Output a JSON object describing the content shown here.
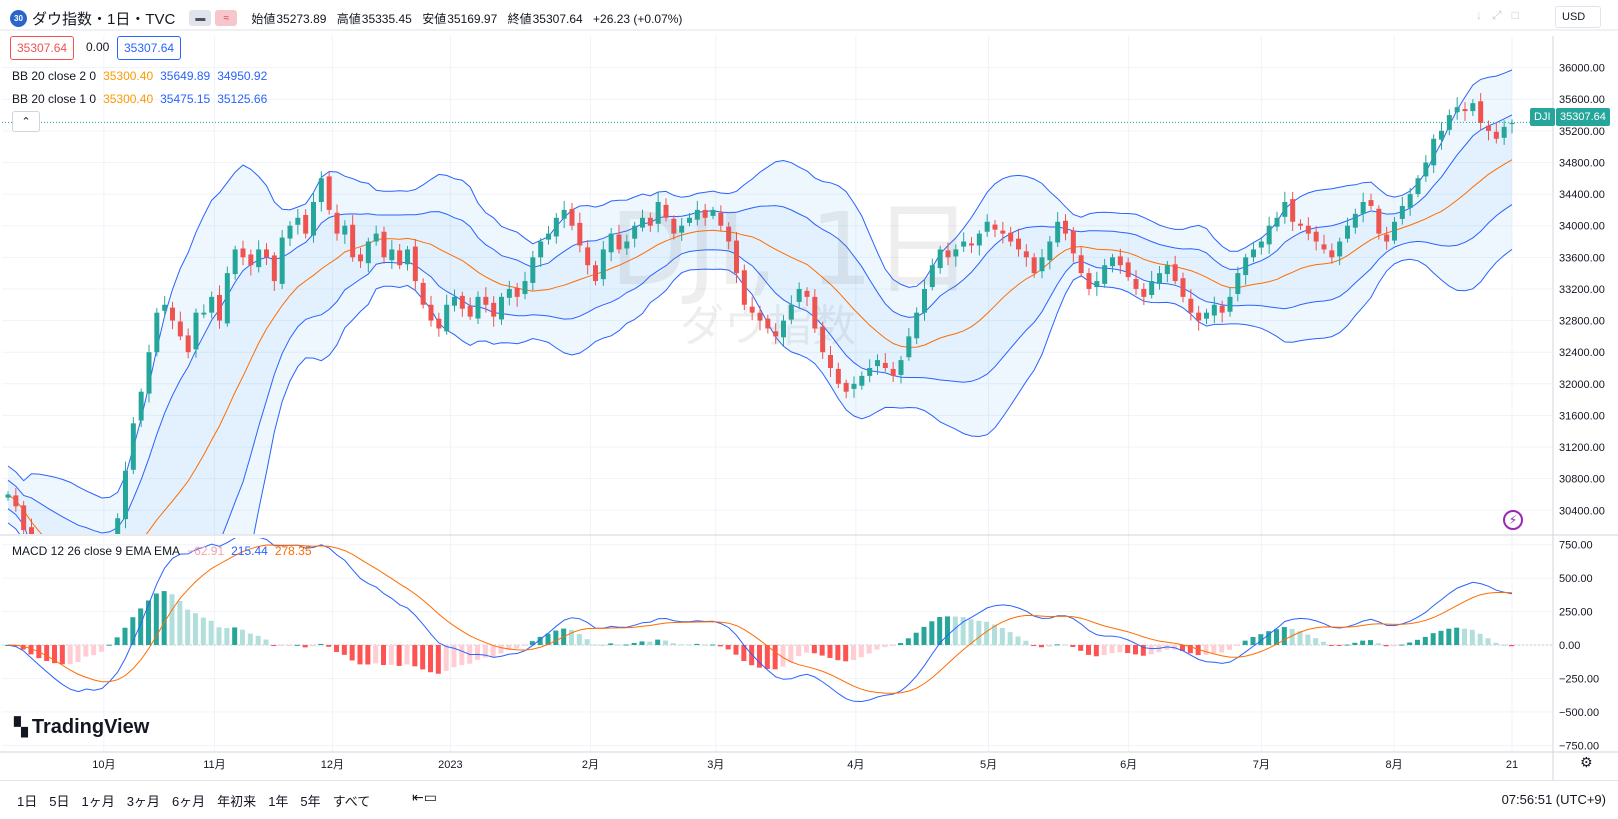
{
  "header": {
    "badge": "30",
    "title": "ダウ指数・1日・TVC",
    "ohlc": [
      {
        "label": "始値",
        "value": "35273.89"
      },
      {
        "label": "高値",
        "value": "35335.45"
      },
      {
        "label": "安値",
        "value": "35169.97"
      },
      {
        "label": "終値",
        "value": "35307.64"
      }
    ],
    "change": "+26.23 (+0.07%)",
    "sell_price": "35307.64",
    "spread": "0.00",
    "buy_price": "35307.64",
    "currency": "USD"
  },
  "indicators": {
    "bb2": {
      "name": "BB 20 close 2 0",
      "basis": "35300.40",
      "upper": "35649.89",
      "lower": "34950.92"
    },
    "bb1": {
      "name": "BB 20 close 1 0",
      "basis": "35300.40",
      "upper": "35475.15",
      "lower": "35125.66"
    },
    "macd": {
      "name": "MACD 12 26 close 9 EMA EMA",
      "hist": "−62.91",
      "macd": "215.44",
      "signal": "278.35"
    }
  },
  "watermark": {
    "symbol": "DJI, 1日",
    "name": "ダウ指数"
  },
  "price_tag": {
    "symbol": "DJI",
    "value": "35307.64"
  },
  "logo": "TradingView",
  "footer": {
    "ranges": [
      "1日",
      "5日",
      "1ヶ月",
      "3ヶ月",
      "6ヶ月",
      "年初来",
      "1年",
      "5年",
      "すべて"
    ],
    "clock": "07:56:51 (UTC+9)"
  },
  "colors": {
    "up": "#26a69a",
    "down": "#ef5350",
    "band": "#2962ff",
    "basis": "#ff6d00",
    "macd": "#2962ff",
    "signal": "#ff6d00"
  },
  "chart_data": {
    "type": "candlestick",
    "price_axis": {
      "ticks": [
        36000,
        35600,
        35200,
        34800,
        34400,
        34000,
        33600,
        33200,
        32800,
        32400,
        32000,
        31600,
        31200,
        30800,
        30400
      ],
      "ylim": [
        30100,
        36400
      ]
    },
    "macd_axis": {
      "ticks": [
        750,
        500,
        250,
        0,
        -250,
        -500,
        -750
      ],
      "ylim": [
        -800,
        800
      ]
    },
    "time_axis": {
      "labels": [
        "10月",
        "11月",
        "12月",
        "2023",
        "2月",
        "3月",
        "4月",
        "5月",
        "6月",
        "7月",
        "8月",
        "21"
      ]
    },
    "last_price": 35307.64,
    "closes": [
      30600,
      30450,
      30150,
      29800,
      29650,
      29500,
      29350,
      29250,
      29200,
      29300,
      29650,
      29300,
      29500,
      30000,
      30300,
      30900,
      31500,
      31900,
      32400,
      32900,
      33000,
      32800,
      32600,
      32400,
      32900,
      32900,
      33100,
      32800,
      33400,
      33700,
      33600,
      33500,
      33700,
      33600,
      33300,
      33850,
      34000,
      34100,
      33900,
      34300,
      34600,
      34200,
      33900,
      34000,
      33600,
      33550,
      33800,
      33900,
      33600,
      33700,
      33500,
      33700,
      33300,
      33000,
      32800,
      32700,
      33000,
      33100,
      32950,
      32850,
      33100,
      33000,
      32850,
      33100,
      33200,
      33100,
      33300,
      33600,
      33800,
      33900,
      34100,
      34200,
      34000,
      33750,
      33500,
      33300,
      33700,
      33900,
      33700,
      33800,
      34000,
      34100,
      34000,
      34300,
      34100,
      33900,
      34000,
      34100,
      34200,
      34100,
      34200,
      34000,
      33800,
      33400,
      33000,
      32900,
      32800,
      32700,
      32600,
      32800,
      33000,
      33200,
      33100,
      32700,
      32400,
      32200,
      32000,
      31900,
      32000,
      32100,
      32200,
      32300,
      32200,
      32100,
      32300,
      32600,
      32900,
      33200,
      33500,
      33700,
      33600,
      33700,
      33800,
      33750,
      33900,
      34050,
      33950,
      33900,
      33800,
      33700,
      33600,
      33400,
      33600,
      33800,
      34050,
      33900,
      33650,
      33400,
      33200,
      33300,
      33500,
      33600,
      33500,
      33350,
      33200,
      33100,
      33300,
      33400,
      33500,
      33300,
      33100,
      32900,
      32800,
      32900,
      33000,
      32900,
      33100,
      33400,
      33600,
      33700,
      33800,
      34000,
      34100,
      34300,
      34050,
      34000,
      33900,
      33800,
      33700,
      33600,
      33800,
      34000,
      34150,
      34300,
      34250,
      33900,
      33800,
      34050,
      34250,
      34400,
      34600,
      34800,
      35100,
      35200,
      35400,
      35500,
      35450,
      35550,
      35300,
      35200,
      35100,
      35250,
      35300
    ]
  }
}
